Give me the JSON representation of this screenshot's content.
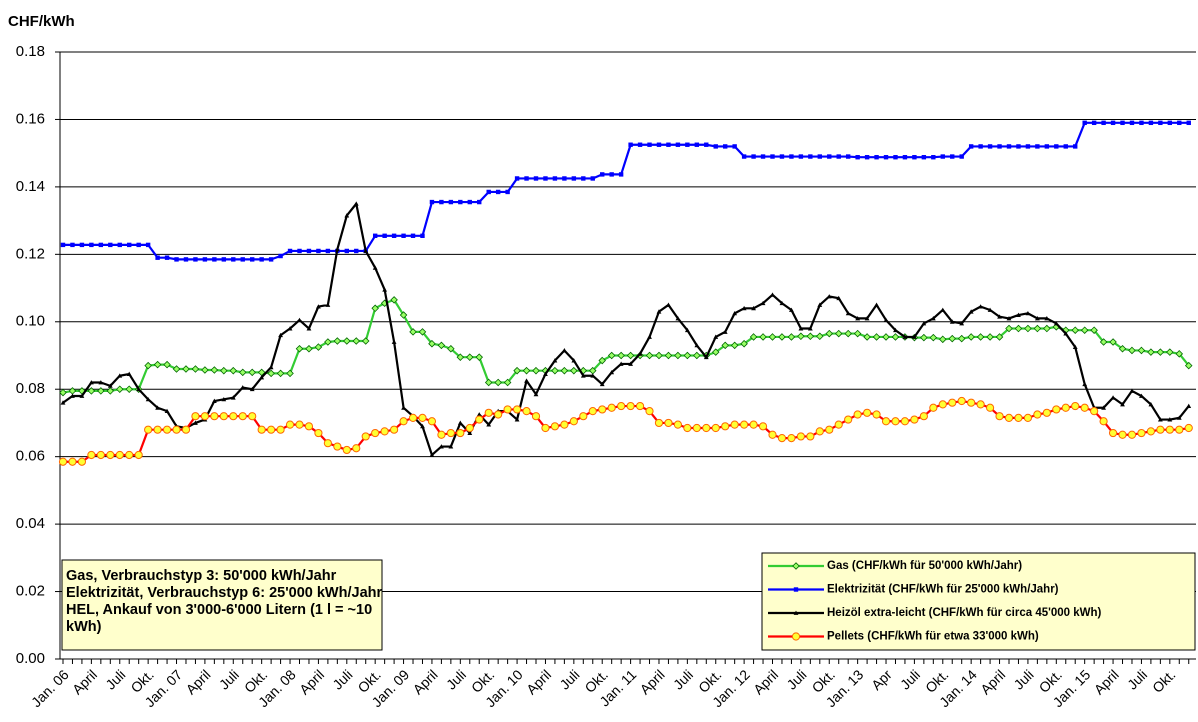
{
  "chart_data": {
    "type": "line",
    "y_label": "CHF/kWh",
    "ylim": [
      0,
      0.18
    ],
    "yticks": [
      {
        "value": 0,
        "label": "0.00"
      },
      {
        "value": 0.02,
        "label": "0.02"
      },
      {
        "value": 0.04,
        "label": "0.04"
      },
      {
        "value": 0.06,
        "label": "0.06"
      },
      {
        "value": 0.08,
        "label": "0.08"
      },
      {
        "value": 0.1,
        "label": "0.10"
      },
      {
        "value": 0.12,
        "label": "0.12"
      },
      {
        "value": 0.14,
        "label": "0.14"
      },
      {
        "value": 0.16,
        "label": "0.16"
      },
      {
        "value": 0.18,
        "label": "0.18"
      }
    ],
    "grid": true,
    "legend": "lower right",
    "annotation": [
      "Gas, Verbrauchstyp 3: 50'000 kWh/Jahr",
      "Elektrizität, Verbrauchstyp 6: 25'000 kWh/Jahr",
      "HEL, Ankauf von 3'000-6'000 Litern (1 l = ~10",
      "kWh)"
    ],
    "categories": [
      "Jan. 06",
      null,
      null,
      "April",
      null,
      null,
      "Juli",
      null,
      null,
      "Okt.",
      null,
      null,
      "Jan. 07",
      null,
      null,
      "April",
      null,
      null,
      "Juli",
      null,
      null,
      "Okt.",
      null,
      null,
      "Jan. 08",
      null,
      null,
      "April",
      null,
      null,
      "Juli",
      null,
      null,
      "Okt.",
      null,
      null,
      "Jan. 09",
      null,
      null,
      "April",
      null,
      null,
      "Juli",
      null,
      null,
      "Okt.",
      null,
      null,
      "Jan. 10",
      null,
      null,
      "April",
      null,
      null,
      "Juli",
      null,
      null,
      "Okt.",
      null,
      null,
      "Jan. 11",
      null,
      null,
      "April",
      null,
      null,
      "Juli",
      null,
      null,
      "Okt.",
      null,
      null,
      "Jan. 12",
      null,
      null,
      "April",
      null,
      null,
      "Juli",
      null,
      null,
      "Okt.",
      null,
      null,
      "Jan. 13",
      null,
      null,
      "Apr",
      null,
      null,
      "Juli",
      null,
      null,
      "Okt.",
      null,
      null,
      "Jan. 14",
      null,
      null,
      "April",
      null,
      null,
      "Juli",
      null,
      null,
      "Okt.",
      null,
      null,
      "Jan. 15",
      null,
      null,
      "April",
      null,
      null,
      "Juli",
      null,
      null,
      "Okt.",
      null,
      null
    ],
    "series": [
      {
        "name": "Gas (CHF/kWh für 50'000 kWh/Jahr)",
        "color": "#33cc33",
        "marker": "diamond",
        "values": [
          0.079,
          0.0795,
          0.0795,
          0.0795,
          0.0795,
          0.0795,
          0.08,
          0.08,
          0.08,
          0.087,
          0.0873,
          0.0873,
          0.086,
          0.086,
          0.086,
          0.0857,
          0.0857,
          0.0855,
          0.0855,
          0.085,
          0.085,
          0.085,
          0.0847,
          0.0847,
          0.0847,
          0.092,
          0.092,
          0.0925,
          0.094,
          0.0943,
          0.0943,
          0.0943,
          0.0943,
          0.104,
          0.1055,
          0.1065,
          0.102,
          0.097,
          0.097,
          0.0935,
          0.093,
          0.092,
          0.0895,
          0.0895,
          0.0895,
          0.082,
          0.082,
          0.082,
          0.0855,
          0.0855,
          0.0855,
          0.0855,
          0.0855,
          0.0855,
          0.0855,
          0.0855,
          0.0855,
          0.0885,
          0.09,
          0.09,
          0.09,
          0.09,
          0.09,
          0.09,
          0.09,
          0.09,
          0.09,
          0.09,
          0.09,
          0.091,
          0.093,
          0.093,
          0.0935,
          0.0955,
          0.0955,
          0.0955,
          0.0955,
          0.0955,
          0.0957,
          0.0957,
          0.0957,
          0.0965,
          0.0965,
          0.0965,
          0.0965,
          0.0955,
          0.0955,
          0.0955,
          0.0955,
          0.0955,
          0.0953,
          0.0953,
          0.0953,
          0.0948,
          0.095,
          0.095,
          0.0955,
          0.0955,
          0.0955,
          0.0955,
          0.098,
          0.098,
          0.098,
          0.098,
          0.098,
          0.0985,
          0.0975,
          0.0975,
          0.0975,
          0.0975,
          0.094,
          0.094,
          0.092,
          0.0915,
          0.0915,
          0.091,
          0.091,
          0.091,
          0.0905,
          0.087
        ]
      },
      {
        "name": "Elektrizität (CHF/kWh für 25'000 kWh/Jahr)",
        "color": "#0000ff",
        "marker": "square",
        "values": [
          0.1228,
          0.1228,
          0.1228,
          0.1228,
          0.1228,
          0.1228,
          0.1228,
          0.1228,
          0.1228,
          0.1228,
          0.119,
          0.119,
          0.1185,
          0.1185,
          0.1185,
          0.1185,
          0.1185,
          0.1185,
          0.1185,
          0.1185,
          0.1185,
          0.1185,
          0.1185,
          0.1195,
          0.121,
          0.121,
          0.121,
          0.121,
          0.121,
          0.121,
          0.121,
          0.121,
          0.121,
          0.1255,
          0.1255,
          0.1255,
          0.1255,
          0.1255,
          0.1255,
          0.1355,
          0.1355,
          0.1355,
          0.1355,
          0.1355,
          0.1355,
          0.1385,
          0.1385,
          0.1385,
          0.1425,
          0.1425,
          0.1425,
          0.1425,
          0.1425,
          0.1425,
          0.1425,
          0.1425,
          0.1425,
          0.1437,
          0.1437,
          0.1437,
          0.1525,
          0.1525,
          0.1525,
          0.1525,
          0.1525,
          0.1525,
          0.1525,
          0.1525,
          0.1525,
          0.152,
          0.152,
          0.152,
          0.149,
          0.149,
          0.149,
          0.149,
          0.149,
          0.149,
          0.149,
          0.149,
          0.149,
          0.149,
          0.149,
          0.149,
          0.1488,
          0.1488,
          0.1488,
          0.1488,
          0.1488,
          0.1488,
          0.1488,
          0.1488,
          0.1488,
          0.149,
          0.149,
          0.149,
          0.152,
          0.152,
          0.152,
          0.152,
          0.152,
          0.152,
          0.152,
          0.152,
          0.152,
          0.152,
          0.152,
          0.152,
          0.159,
          0.159,
          0.159,
          0.159,
          0.159,
          0.159,
          0.159,
          0.159,
          0.159,
          0.159,
          0.159,
          0.159
        ]
      },
      {
        "name": "Heizöl extra-leicht (CHF/kWh für circa 45'000 kWh)",
        "color": "#000000",
        "marker": "triangle",
        "values": [
          0.076,
          0.078,
          0.078,
          0.082,
          0.082,
          0.081,
          0.084,
          0.0845,
          0.08,
          0.077,
          0.0745,
          0.0735,
          0.069,
          0.0685,
          0.07,
          0.071,
          0.0765,
          0.077,
          0.0775,
          0.0805,
          0.08,
          0.0835,
          0.0865,
          0.096,
          0.098,
          0.1005,
          0.098,
          0.1045,
          0.105,
          0.1215,
          0.1315,
          0.135,
          0.121,
          0.116,
          0.1095,
          0.094,
          0.0745,
          0.072,
          0.069,
          0.0605,
          0.063,
          0.063,
          0.07,
          0.067,
          0.0725,
          0.0695,
          0.0735,
          0.0735,
          0.071,
          0.0825,
          0.0785,
          0.0845,
          0.0885,
          0.0915,
          0.0885,
          0.084,
          0.084,
          0.0815,
          0.085,
          0.0875,
          0.0875,
          0.0905,
          0.0955,
          0.103,
          0.105,
          0.101,
          0.0975,
          0.093,
          0.0895,
          0.0955,
          0.097,
          0.1025,
          0.104,
          0.104,
          0.1055,
          0.108,
          0.1055,
          0.1035,
          0.098,
          0.098,
          0.105,
          0.1075,
          0.107,
          0.1025,
          0.101,
          0.101,
          0.105,
          0.1005,
          0.0975,
          0.0955,
          0.0955,
          0.0995,
          0.101,
          0.1035,
          0.1,
          0.0995,
          0.103,
          0.1045,
          0.1035,
          0.1015,
          0.101,
          0.102,
          0.1025,
          0.101,
          0.101,
          0.0995,
          0.0965,
          0.0925,
          0.0815,
          0.0745,
          0.0745,
          0.0775,
          0.0755,
          0.0795,
          0.078,
          0.0755,
          0.071,
          0.071,
          0.0715,
          0.075
        ]
      },
      {
        "name": "Pellets (CHF/kWh für etwa 33'000 kWh)",
        "color": "#ff0000",
        "marker": "circle",
        "marker_color": "#ffff33",
        "values": [
          0.0585,
          0.0585,
          0.0585,
          0.0605,
          0.0605,
          0.0605,
          0.0605,
          0.0605,
          0.0605,
          0.068,
          0.068,
          0.068,
          0.068,
          0.068,
          0.072,
          0.072,
          0.072,
          0.072,
          0.072,
          0.072,
          0.072,
          0.068,
          0.068,
          0.068,
          0.0695,
          0.0695,
          0.069,
          0.067,
          0.064,
          0.063,
          0.062,
          0.0625,
          0.066,
          0.067,
          0.0675,
          0.068,
          0.0705,
          0.0715,
          0.0715,
          0.0705,
          0.0665,
          0.067,
          0.067,
          0.0685,
          0.071,
          0.073,
          0.0725,
          0.074,
          0.074,
          0.0735,
          0.072,
          0.0685,
          0.069,
          0.0695,
          0.0705,
          0.072,
          0.0735,
          0.074,
          0.0745,
          0.075,
          0.075,
          0.075,
          0.0735,
          0.07,
          0.07,
          0.0695,
          0.0685,
          0.0685,
          0.0685,
          0.0685,
          0.069,
          0.0695,
          0.0695,
          0.0695,
          0.069,
          0.0665,
          0.0655,
          0.0655,
          0.066,
          0.066,
          0.0675,
          0.068,
          0.0695,
          0.071,
          0.0725,
          0.073,
          0.0725,
          0.0705,
          0.0705,
          0.0705,
          0.071,
          0.072,
          0.0745,
          0.0755,
          0.076,
          0.0765,
          0.076,
          0.0755,
          0.0745,
          0.072,
          0.0715,
          0.0715,
          0.0715,
          0.0725,
          0.073,
          0.074,
          0.0745,
          0.075,
          0.0745,
          0.0735,
          0.0705,
          0.067,
          0.0665,
          0.0665,
          0.067,
          0.0675,
          0.068,
          0.068,
          0.068,
          0.0685
        ]
      }
    ]
  }
}
